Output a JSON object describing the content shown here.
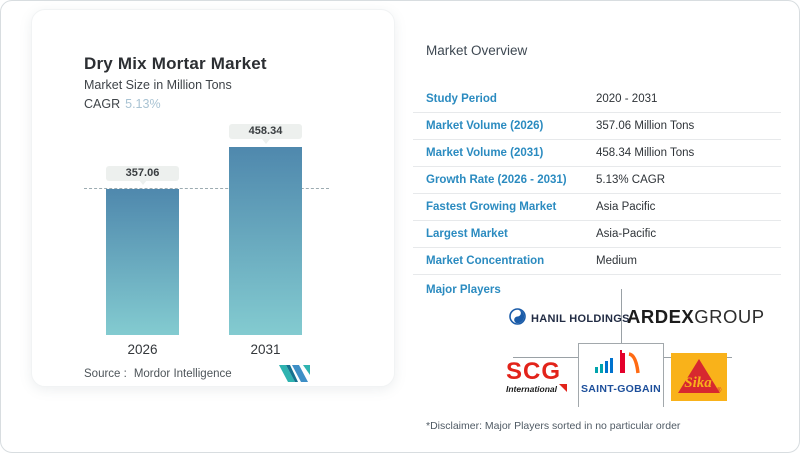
{
  "chart_card": {
    "title": "Dry Mix Mortar Market",
    "subtitle": "Market Size in Million Tons",
    "cagr_label": "CAGR",
    "cagr_value": "5.13%",
    "source_label": "Source :",
    "source_name": "Mordor Intelligence"
  },
  "chart_data": {
    "type": "bar",
    "title": "Dry Mix Mortar Market",
    "ylabel": "Market Size in Million Tons",
    "categories": [
      "2026",
      "2031"
    ],
    "values": [
      357.06,
      458.34
    ],
    "ylim": [
      0,
      500
    ],
    "reference_line": 357.06,
    "grid": false,
    "bar_gradient_top": "#4f88ad",
    "bar_gradient_bottom": "#83cbd0",
    "cagr": "5.13% CAGR"
  },
  "overview": {
    "title": "Market Overview",
    "rows": [
      {
        "label": "Study Period",
        "value": "2020 - 2031"
      },
      {
        "label": "Market Volume (2026)",
        "value": "357.06 Million Tons"
      },
      {
        "label": "Market Volume (2031)",
        "value": "458.34 Million Tons"
      },
      {
        "label": "Growth Rate (2026 - 2031)",
        "value": "5.13% CAGR"
      },
      {
        "label": "Fastest Growing Market",
        "value": "Asia Pacific"
      },
      {
        "label": "Largest Market",
        "value": "Asia-Pacific"
      },
      {
        "label": "Market Concentration",
        "value": "Medium"
      }
    ],
    "major_players_label": "Major Players",
    "disclaimer": "*Disclaimer: Major Players sorted in no particular order"
  },
  "players": {
    "hanil_text": "HANIL HOLDINGS",
    "ardex_bold": "ARDEX",
    "ardex_light": "GROUP",
    "scg_text": "SCG",
    "scg_sub": "International",
    "saint_gobain_text": "SAINT-GOBAIN",
    "sika_text": "Sika",
    "sika_reg": "®"
  },
  "colors": {
    "table_label_blue": "#2b8bc0",
    "cagr_light_blue": "#a9c3d3",
    "bar_top": "#4f88ad",
    "bar_bottom": "#83cbd0",
    "scg_red": "#e2231a",
    "saint_gobain_blue": "#1d4f9b",
    "sika_yellow": "#f9b21a",
    "sika_red": "#d7282f",
    "hanil_blue": "#1a5ba8",
    "mordor_teal": "#2fb3b0",
    "mordor_blue": "#3e8fc6"
  }
}
